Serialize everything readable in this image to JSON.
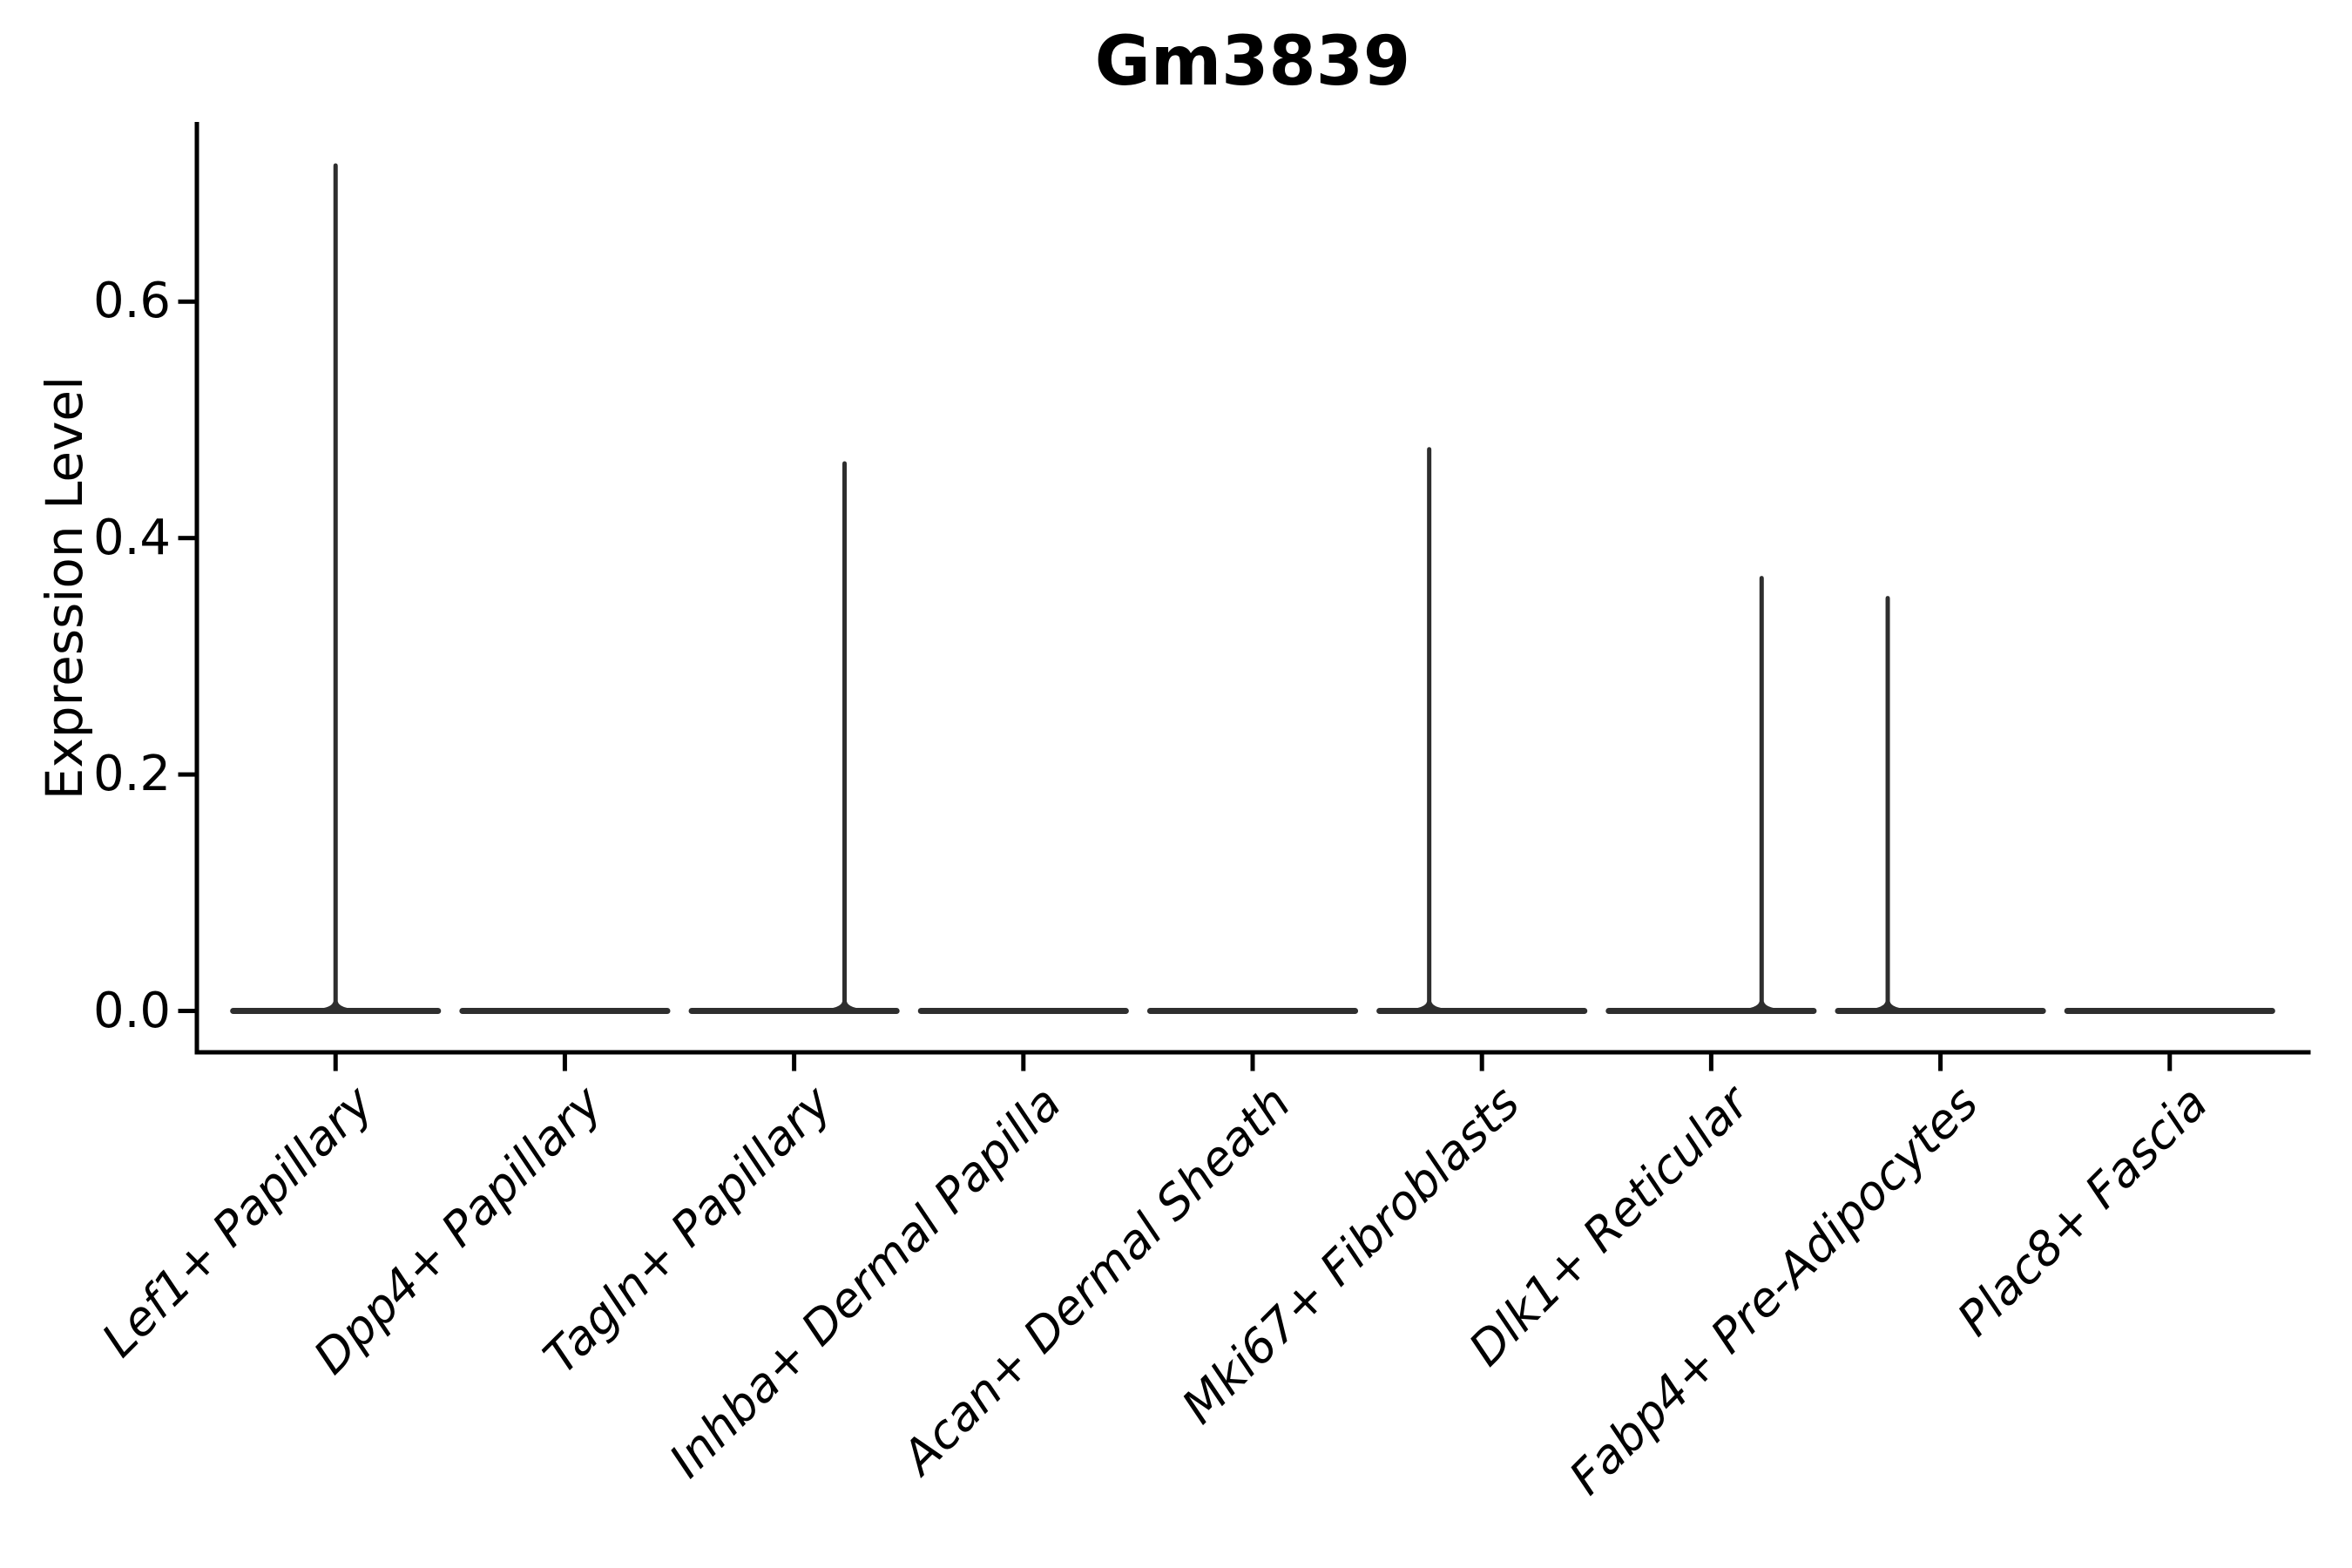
{
  "chart_data": {
    "type": "violin",
    "title": "Gm3839",
    "xlabel": "",
    "ylabel": "Expression Level",
    "ylim": [
      -0.035,
      0.752
    ],
    "ytick_labels": [
      "0.0",
      "0.2",
      "0.4",
      "0.6"
    ],
    "ytick_values": [
      0.0,
      0.2,
      0.4,
      0.6
    ],
    "grid": false,
    "legend": "none",
    "axis_color": "#000000",
    "violin_color": "#2e2e2e",
    "categories": [
      "Lef1+ Papillary",
      "Dpp4+ Papillary",
      "Tagln+ Papillary",
      "Inhba+ Dermal Papilla",
      "Acan+ Dermal Sheath",
      "Mki67+ Fibroblasts",
      "Dlk1+ Reticular",
      "Fabp4+ Pre-Adipocytes",
      "Plac8+ Fascia"
    ],
    "violins": [
      {
        "category": "Lef1+ Papillary",
        "max_expression": 0.717,
        "spike_offset_frac": 0.0,
        "base_at_zero": true
      },
      {
        "category": "Dpp4+ Papillary",
        "max_expression": 0.0,
        "spike_offset_frac": 0.0,
        "base_at_zero": true
      },
      {
        "category": "Tagln+ Papillary",
        "max_expression": 0.465,
        "spike_offset_frac": 0.22,
        "base_at_zero": true
      },
      {
        "category": "Inhba+ Dermal Papilla",
        "max_expression": 0.0,
        "spike_offset_frac": 0.0,
        "base_at_zero": true
      },
      {
        "category": "Acan+ Dermal Sheath",
        "max_expression": 0.0,
        "spike_offset_frac": 0.0,
        "base_at_zero": true
      },
      {
        "category": "Mki67+ Fibroblasts",
        "max_expression": 0.477,
        "spike_offset_frac": -0.23,
        "base_at_zero": true
      },
      {
        "category": "Dlk1+ Reticular",
        "max_expression": 0.368,
        "spike_offset_frac": 0.22,
        "base_at_zero": true
      },
      {
        "category": "Fabp4+ Pre-Adipocytes",
        "max_expression": 0.351,
        "spike_offset_frac": -0.23,
        "base_at_zero": true
      },
      {
        "category": "Plac8+ Fascia",
        "max_expression": 0.0,
        "spike_offset_frac": 0.0,
        "base_at_zero": true
      }
    ]
  }
}
